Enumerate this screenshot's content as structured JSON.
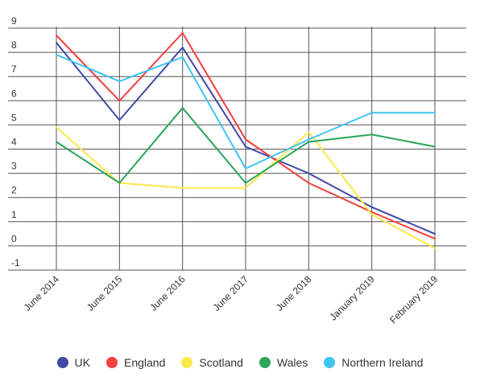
{
  "chart_data": {
    "type": "line",
    "categories": [
      "June 2014",
      "June 2015",
      "June 2016",
      "June 2017",
      "June 2018",
      "January 2019",
      "February 2019"
    ],
    "ylim": [
      -1,
      9
    ],
    "yticks": [
      -1,
      0,
      1,
      2,
      3,
      4,
      5,
      6,
      7,
      8,
      9
    ],
    "grid": true,
    "legend_position": "bottom",
    "series": [
      {
        "name": "UK",
        "color": "#3f4aa5",
        "values": [
          8.4,
          5.2,
          8.2,
          4.1,
          3.0,
          1.6,
          0.5
        ]
      },
      {
        "name": "England",
        "color": "#f23f3f",
        "values": [
          8.7,
          6.0,
          8.8,
          4.4,
          2.6,
          1.4,
          0.3
        ]
      },
      {
        "name": "Scotland",
        "color": "#fbe84a",
        "values": [
          4.9,
          2.6,
          2.4,
          2.4,
          4.7,
          1.3,
          -0.1
        ]
      },
      {
        "name": "Wales",
        "color": "#2aa55a",
        "values": [
          4.3,
          2.6,
          5.7,
          2.6,
          4.3,
          4.6,
          4.1
        ]
      },
      {
        "name": "Northern Ireland",
        "color": "#40c4f4",
        "values": [
          7.9,
          6.8,
          7.8,
          3.2,
          4.4,
          5.5,
          5.5
        ]
      }
    ]
  }
}
